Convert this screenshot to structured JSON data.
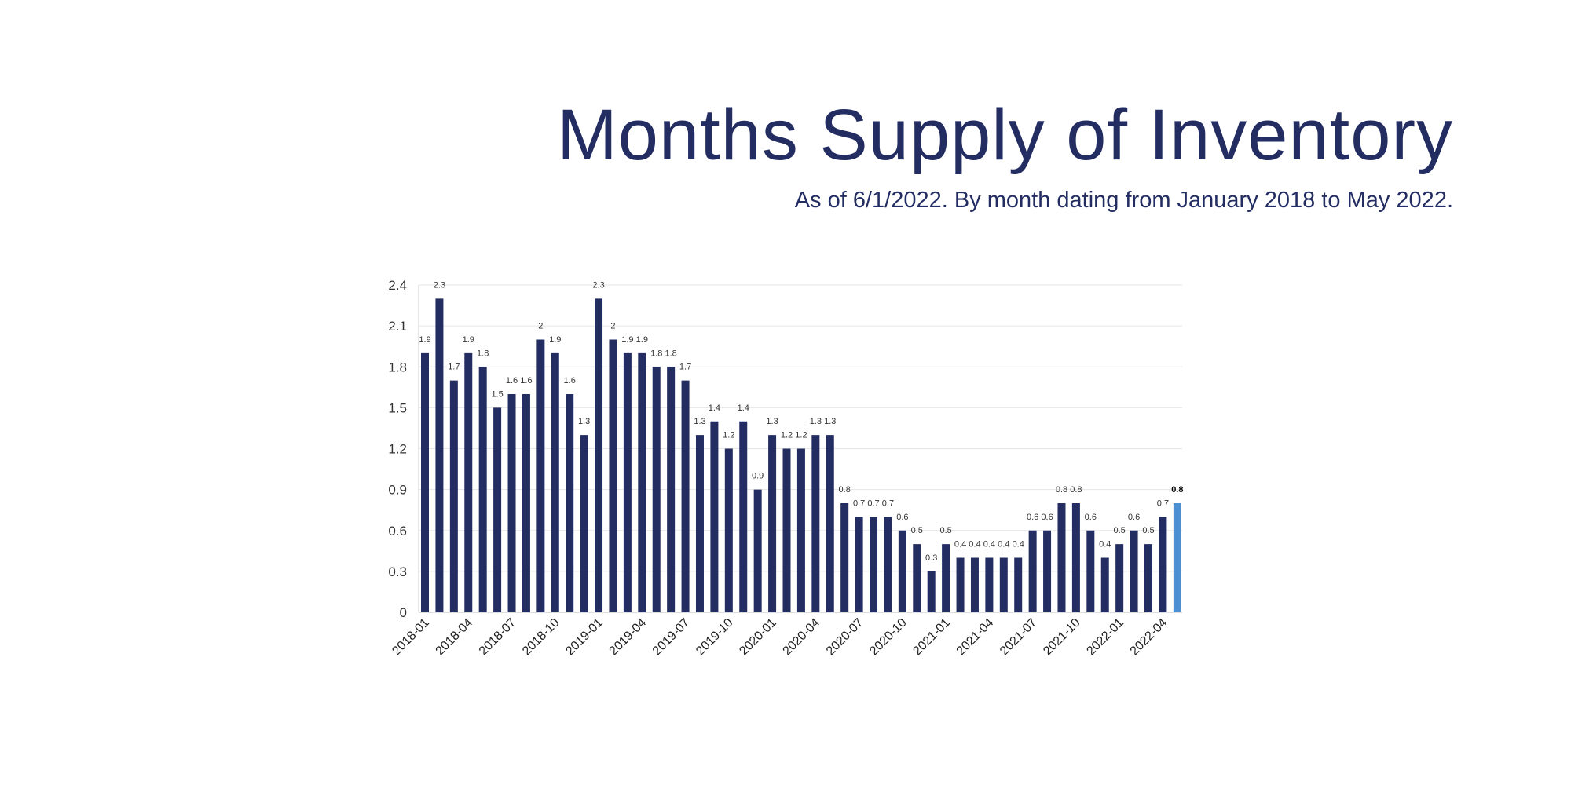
{
  "title": "Months Supply of Inventory",
  "subtitle": "As of 6/1/2022. By month dating from January 2018 to May 2022.",
  "colors": {
    "bar": "#232d62",
    "highlight": "#4a90d2",
    "title": "#232d62",
    "grid": "#e6e6e6"
  },
  "chart_data": {
    "type": "bar",
    "title": "Months Supply of Inventory",
    "subtitle": "As of 6/1/2022. By month dating from January 2018 to May 2022.",
    "xlabel": "",
    "ylabel": "",
    "ylim": [
      0,
      2.4
    ],
    "yticks": [
      0,
      0.3,
      0.6,
      0.9,
      1.2,
      1.5,
      1.8,
      2.1,
      2.4
    ],
    "grid": true,
    "legend": "none",
    "categories": [
      "2018-01",
      "2018-02",
      "2018-03",
      "2018-04",
      "2018-05",
      "2018-06",
      "2018-07",
      "2018-08",
      "2018-09",
      "2018-10",
      "2018-11",
      "2018-12",
      "2019-01",
      "2019-02",
      "2019-03",
      "2019-04",
      "2019-05",
      "2019-06",
      "2019-07",
      "2019-08",
      "2019-09",
      "2019-10",
      "2019-11",
      "2019-12",
      "2020-01",
      "2020-02",
      "2020-03",
      "2020-04",
      "2020-05",
      "2020-06",
      "2020-07",
      "2020-08",
      "2020-09",
      "2020-10",
      "2020-11",
      "2020-12",
      "2021-01",
      "2021-02",
      "2021-03",
      "2021-04",
      "2021-05",
      "2021-06",
      "2021-07",
      "2021-08",
      "2021-09",
      "2021-10",
      "2021-11",
      "2021-12",
      "2022-01",
      "2022-02",
      "2022-03",
      "2022-04",
      "2022-05"
    ],
    "xticklabels": [
      "2018-01",
      "2018-04",
      "2018-07",
      "2018-10",
      "2019-01",
      "2019-04",
      "2019-07",
      "2019-10",
      "2020-01",
      "2020-04",
      "2020-07",
      "2020-10",
      "2021-01",
      "2021-04",
      "2021-07",
      "2021-10",
      "2022-01",
      "2022-04"
    ],
    "values": [
      1.9,
      2.3,
      1.7,
      1.9,
      1.8,
      1.5,
      1.6,
      1.6,
      2,
      1.9,
      1.6,
      1.3,
      2.3,
      2,
      1.9,
      1.9,
      1.8,
      1.8,
      1.7,
      1.3,
      1.4,
      1.2,
      1.4,
      0.9,
      1.3,
      1.2,
      1.2,
      1.3,
      1.3,
      0.8,
      0.7,
      0.7,
      0.7,
      0.6,
      0.5,
      0.3,
      0.5,
      0.4,
      0.4,
      0.4,
      0.4,
      0.4,
      0.6,
      0.6,
      0.8,
      0.8,
      0.6,
      0.4,
      0.5,
      0.6,
      0.5,
      0.7,
      0.8
    ],
    "highlight_category": "2022-05"
  }
}
